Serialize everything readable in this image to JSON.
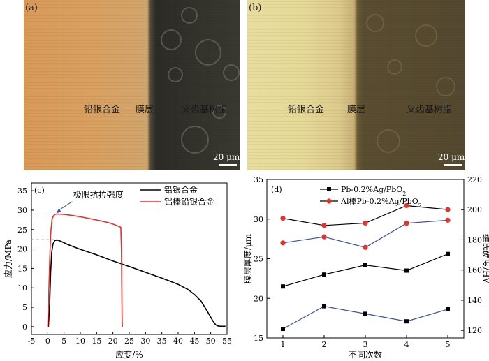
{
  "panel_a": {
    "label": "(a)",
    "alloy_label": "铅银合金",
    "film_label": "膜层",
    "resin_label": "义齿基树脂",
    "scale_text": "20 μm"
  },
  "panel_b": {
    "label": "(b)",
    "alloy_label": "铅银合金",
    "film_label": "膜层",
    "resin_label": "义齿基树脂",
    "scale_text": "20 μm"
  },
  "chart_data": [
    {
      "panel": "(c)",
      "type": "line",
      "xlabel": "应变/%",
      "ylabel": "应力/MPa",
      "xlim": [
        -5,
        55
      ],
      "ylim": [
        -2,
        37
      ],
      "xticks": [
        -5,
        0,
        5,
        10,
        15,
        20,
        25,
        30,
        35,
        40,
        45,
        50,
        55
      ],
      "yticks": [
        0,
        5,
        10,
        15,
        20,
        25,
        30,
        35
      ],
      "annotation": "极限抗拉强度",
      "reference_levels": [
        29.0,
        22.4
      ],
      "legend_position": "top-right",
      "series": [
        {
          "name": "铅银合金",
          "color": "#000000",
          "x": [
            0.2,
            0.6,
            0.9,
            1.2,
            1.6,
            2.2,
            3.0,
            4.0,
            6.0,
            10,
            15,
            20,
            25,
            30,
            35,
            40,
            43,
            45,
            47,
            49,
            50.5,
            51.5,
            52.2,
            53,
            54.5
          ],
          "y": [
            0,
            6,
            14,
            19,
            21.3,
            22.2,
            22.3,
            22.0,
            21.2,
            19.9,
            18.5,
            16.9,
            15.5,
            14.0,
            12.5,
            10.9,
            9.6,
            8.3,
            6.6,
            3.9,
            1.7,
            0.5,
            0.2,
            0.1,
            0.1
          ]
        },
        {
          "name": "铝棒铅银合金",
          "color": "#e8312b",
          "x": [
            0.0,
            0.3,
            0.6,
            0.9,
            1.3,
            1.8,
            2.5,
            3.5,
            5.0,
            7.0,
            10,
            13,
            16,
            19,
            21,
            22.4,
            22.6,
            22.7,
            22.8,
            22.9
          ],
          "y": [
            0,
            8,
            17,
            24,
            27.6,
            28.6,
            29.0,
            29.0,
            28.9,
            28.7,
            28.3,
            27.8,
            27.3,
            26.7,
            26.1,
            25.6,
            20,
            10,
            3,
            0
          ]
        }
      ]
    },
    {
      "panel": "(d)",
      "type": "line",
      "xlabel": "不同次数",
      "ylabel": "膜层厚度/μm",
      "ylabel_right": "维氏硬度/HV",
      "categories": [
        1,
        2,
        3,
        4,
        5
      ],
      "ylim": [
        15,
        35
      ],
      "ylim_right": [
        115,
        220
      ],
      "yticks": [
        15,
        20,
        25,
        30,
        35
      ],
      "yticks_right": [
        120,
        140,
        160,
        180,
        200,
        220
      ],
      "legend_position": "top-center",
      "legend": [
        {
          "label": "Pb-0.2%Ag/PbO",
          "sub": "2",
          "marker": "square",
          "color": "#000000"
        },
        {
          "label": "Al棒Pb-0.2%Ag/PbO",
          "sub": "2",
          "marker": "circle",
          "color": "#e8312b"
        }
      ],
      "series": [
        {
          "axis": "left",
          "marker": "square",
          "line_color": "#000000",
          "values": [
            21.5,
            23.0,
            24.2,
            23.5,
            25.6
          ]
        },
        {
          "axis": "left",
          "marker": "circle",
          "line_color": "#000000",
          "values": [
            30.1,
            29.2,
            29.5,
            31.7,
            31.2
          ]
        },
        {
          "axis": "right",
          "marker": "square",
          "line_color": "#3a4fa6",
          "values": [
            121,
            136,
            131,
            126,
            134
          ]
        },
        {
          "axis": "right",
          "marker": "circle",
          "line_color": "#3a4fa6",
          "values": [
            178,
            182,
            175,
            191,
            193
          ]
        }
      ]
    }
  ]
}
